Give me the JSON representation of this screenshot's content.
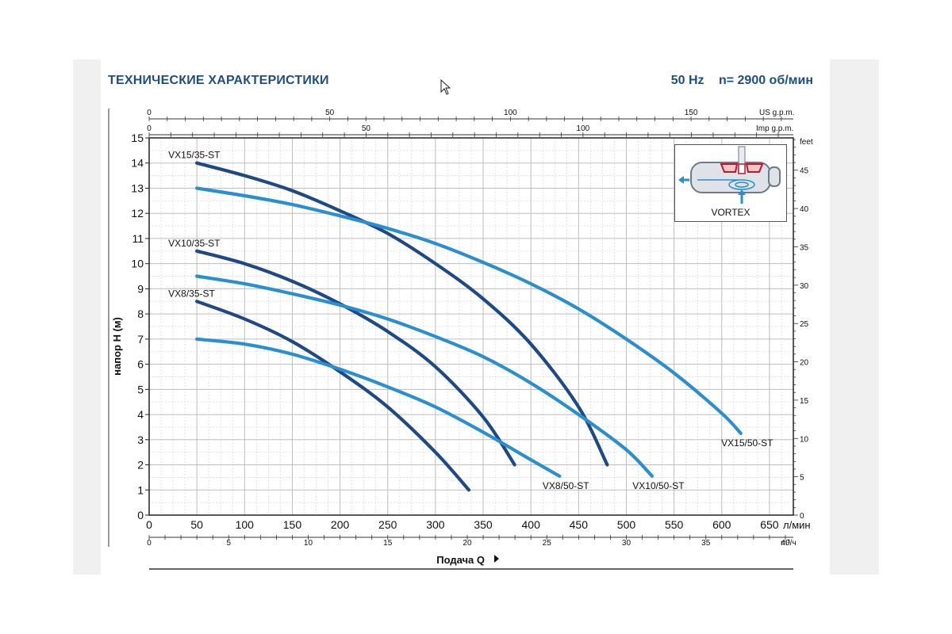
{
  "header": {
    "title": "ТЕХНИЧЕСКИЕ ХАРАКТЕРИСТИКИ",
    "freq": "50 Hz",
    "speed": "n= 2900 об/мин"
  },
  "inset": {
    "label": "VORTEX"
  },
  "colors": {
    "dark_curve": "#1d4a86",
    "light_curve": "#2a8fd0",
    "title": "#1e4f82",
    "grid": "#c8c8c8"
  },
  "chart_data": {
    "type": "line",
    "title": "ТЕХНИЧЕСКИЕ ХАРАКТЕРИСТИКИ",
    "xlabel": "Подача Q",
    "ylabel": "напор H (м)",
    "xlim": [
      0,
      675
    ],
    "ylim": [
      0,
      15
    ],
    "x_unit": "л/мин",
    "x_ticks": [
      0,
      50,
      100,
      150,
      200,
      250,
      300,
      350,
      400,
      450,
      500,
      550,
      600,
      650
    ],
    "y_ticks": [
      0,
      1,
      2,
      3,
      4,
      5,
      6,
      7,
      8,
      9,
      10,
      11,
      12,
      13,
      14,
      15
    ],
    "secondary_axes": {
      "us_gpm": {
        "label": "US g.p.m.",
        "ticks": [
          0,
          50,
          100,
          150
        ]
      },
      "imp_gpm": {
        "label": "Imp g.p.m.",
        "ticks": [
          0,
          50,
          100
        ]
      },
      "m3h": {
        "label": "m³/ч",
        "ticks": [
          0,
          5,
          10,
          15,
          20,
          25,
          30,
          35,
          40
        ]
      },
      "feet": {
        "label": "feet",
        "ticks": [
          0,
          5,
          10,
          15,
          20,
          25,
          30,
          35,
          40,
          45
        ]
      }
    },
    "grid": true,
    "series": [
      {
        "name": "VX15/35-ST",
        "style": "dark",
        "x": [
          50,
          100,
          150,
          200,
          250,
          300,
          350,
          400,
          450,
          480
        ],
        "y": [
          14,
          13.5,
          12.9,
          12.1,
          11.2,
          10,
          8.6,
          6.8,
          4.3,
          2
        ]
      },
      {
        "name": "VX15/50-ST",
        "style": "light",
        "x": [
          50,
          100,
          150,
          200,
          250,
          300,
          350,
          400,
          450,
          500,
          550,
          600,
          620
        ],
        "y": [
          13,
          12.7,
          12.35,
          11.9,
          11.4,
          10.8,
          10.05,
          9.2,
          8.2,
          7,
          5.65,
          4.05,
          3.25
        ]
      },
      {
        "name": "VX10/35-ST",
        "style": "dark",
        "x": [
          50,
          100,
          150,
          200,
          250,
          300,
          350,
          383
        ],
        "y": [
          10.5,
          10,
          9.3,
          8.4,
          7.3,
          5.9,
          3.9,
          2
        ]
      },
      {
        "name": "VX10/50-ST",
        "style": "light",
        "x": [
          50,
          100,
          150,
          200,
          250,
          300,
          350,
          400,
          450,
          500,
          527
        ],
        "y": [
          9.5,
          9.2,
          8.8,
          8.35,
          7.8,
          7.1,
          6.3,
          5.25,
          4,
          2.6,
          1.55
        ]
      },
      {
        "name": "VX8/35-ST",
        "style": "dark",
        "x": [
          50,
          100,
          150,
          200,
          250,
          300,
          335
        ],
        "y": [
          8.5,
          7.8,
          6.9,
          5.7,
          4.3,
          2.5,
          1
        ]
      },
      {
        "name": "VX8/50-ST",
        "style": "light",
        "x": [
          50,
          100,
          150,
          200,
          250,
          300,
          350,
          400,
          430
        ],
        "y": [
          7,
          6.8,
          6.4,
          5.8,
          5.1,
          4.3,
          3.3,
          2.2,
          1.55
        ]
      }
    ]
  }
}
